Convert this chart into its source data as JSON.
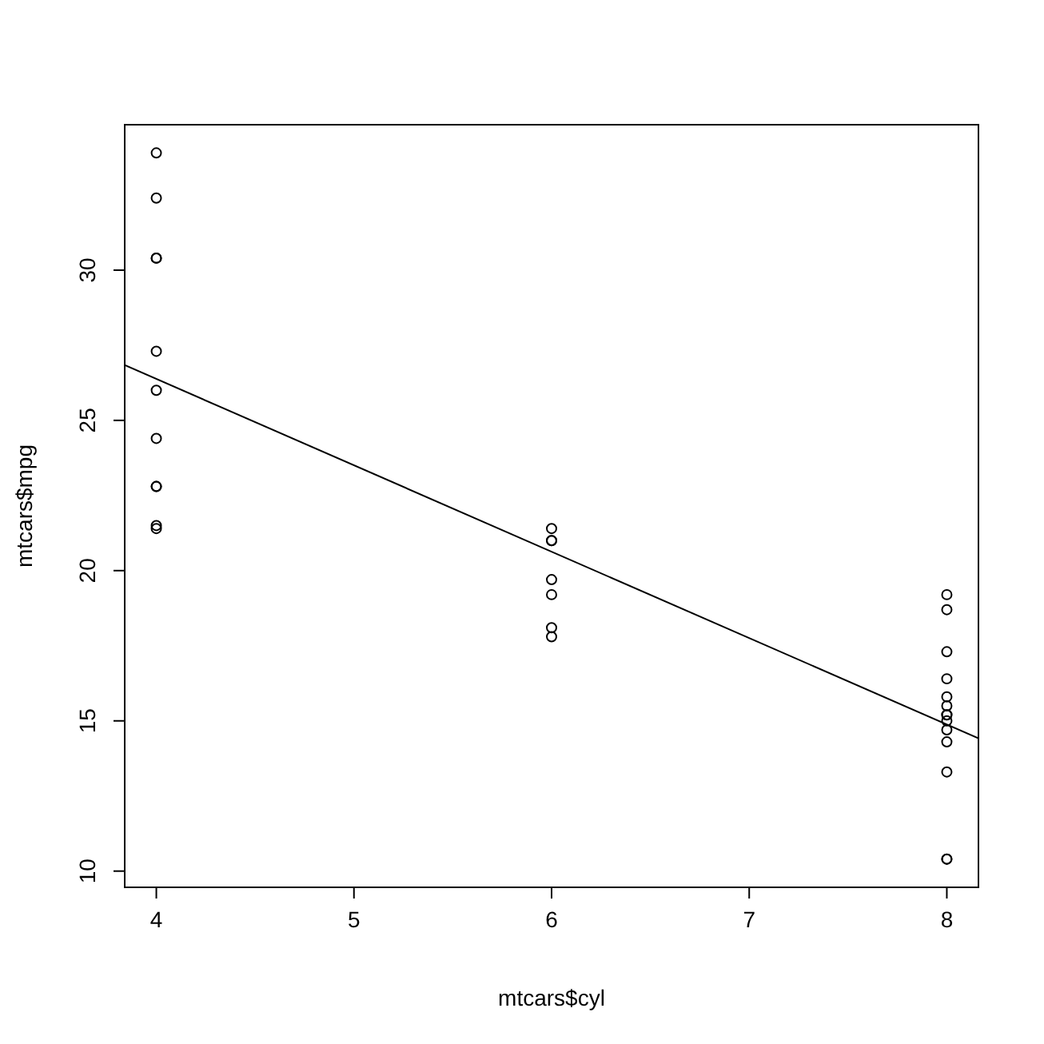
{
  "chart_data": {
    "type": "scatter",
    "xlabel": "mtcars$cyl",
    "ylabel": "mtcars$mpg",
    "xlim": [
      3.84,
      8.16
    ],
    "ylim": [
      9.46,
      34.84
    ],
    "xticks": [
      4,
      5,
      6,
      7,
      8
    ],
    "yticks": [
      10,
      15,
      20,
      25,
      30
    ],
    "grid": false,
    "series": [
      {
        "marker": "circle",
        "color": "#000000",
        "x": [
          4,
          4,
          4,
          4,
          4,
          4,
          4,
          4,
          4,
          4,
          4,
          6,
          6,
          6,
          6,
          6,
          6,
          6,
          8,
          8,
          8,
          8,
          8,
          8,
          8,
          8,
          8,
          8,
          8,
          8,
          8,
          8
        ],
        "values": [
          22.8,
          24.4,
          22.8,
          32.4,
          30.4,
          33.9,
          21.5,
          27.3,
          26.0,
          30.4,
          21.4,
          21.0,
          21.0,
          21.4,
          18.1,
          19.2,
          17.8,
          19.7,
          18.7,
          14.3,
          16.4,
          17.3,
          15.2,
          10.4,
          10.4,
          14.7,
          15.5,
          15.2,
          13.3,
          19.2,
          15.8,
          15.0
        ]
      },
      {
        "type": "line",
        "marker": "none",
        "color": "#000000",
        "x": [
          3.84,
          8.16
        ],
        "values": [
          26.84,
          14.42
        ]
      }
    ]
  }
}
